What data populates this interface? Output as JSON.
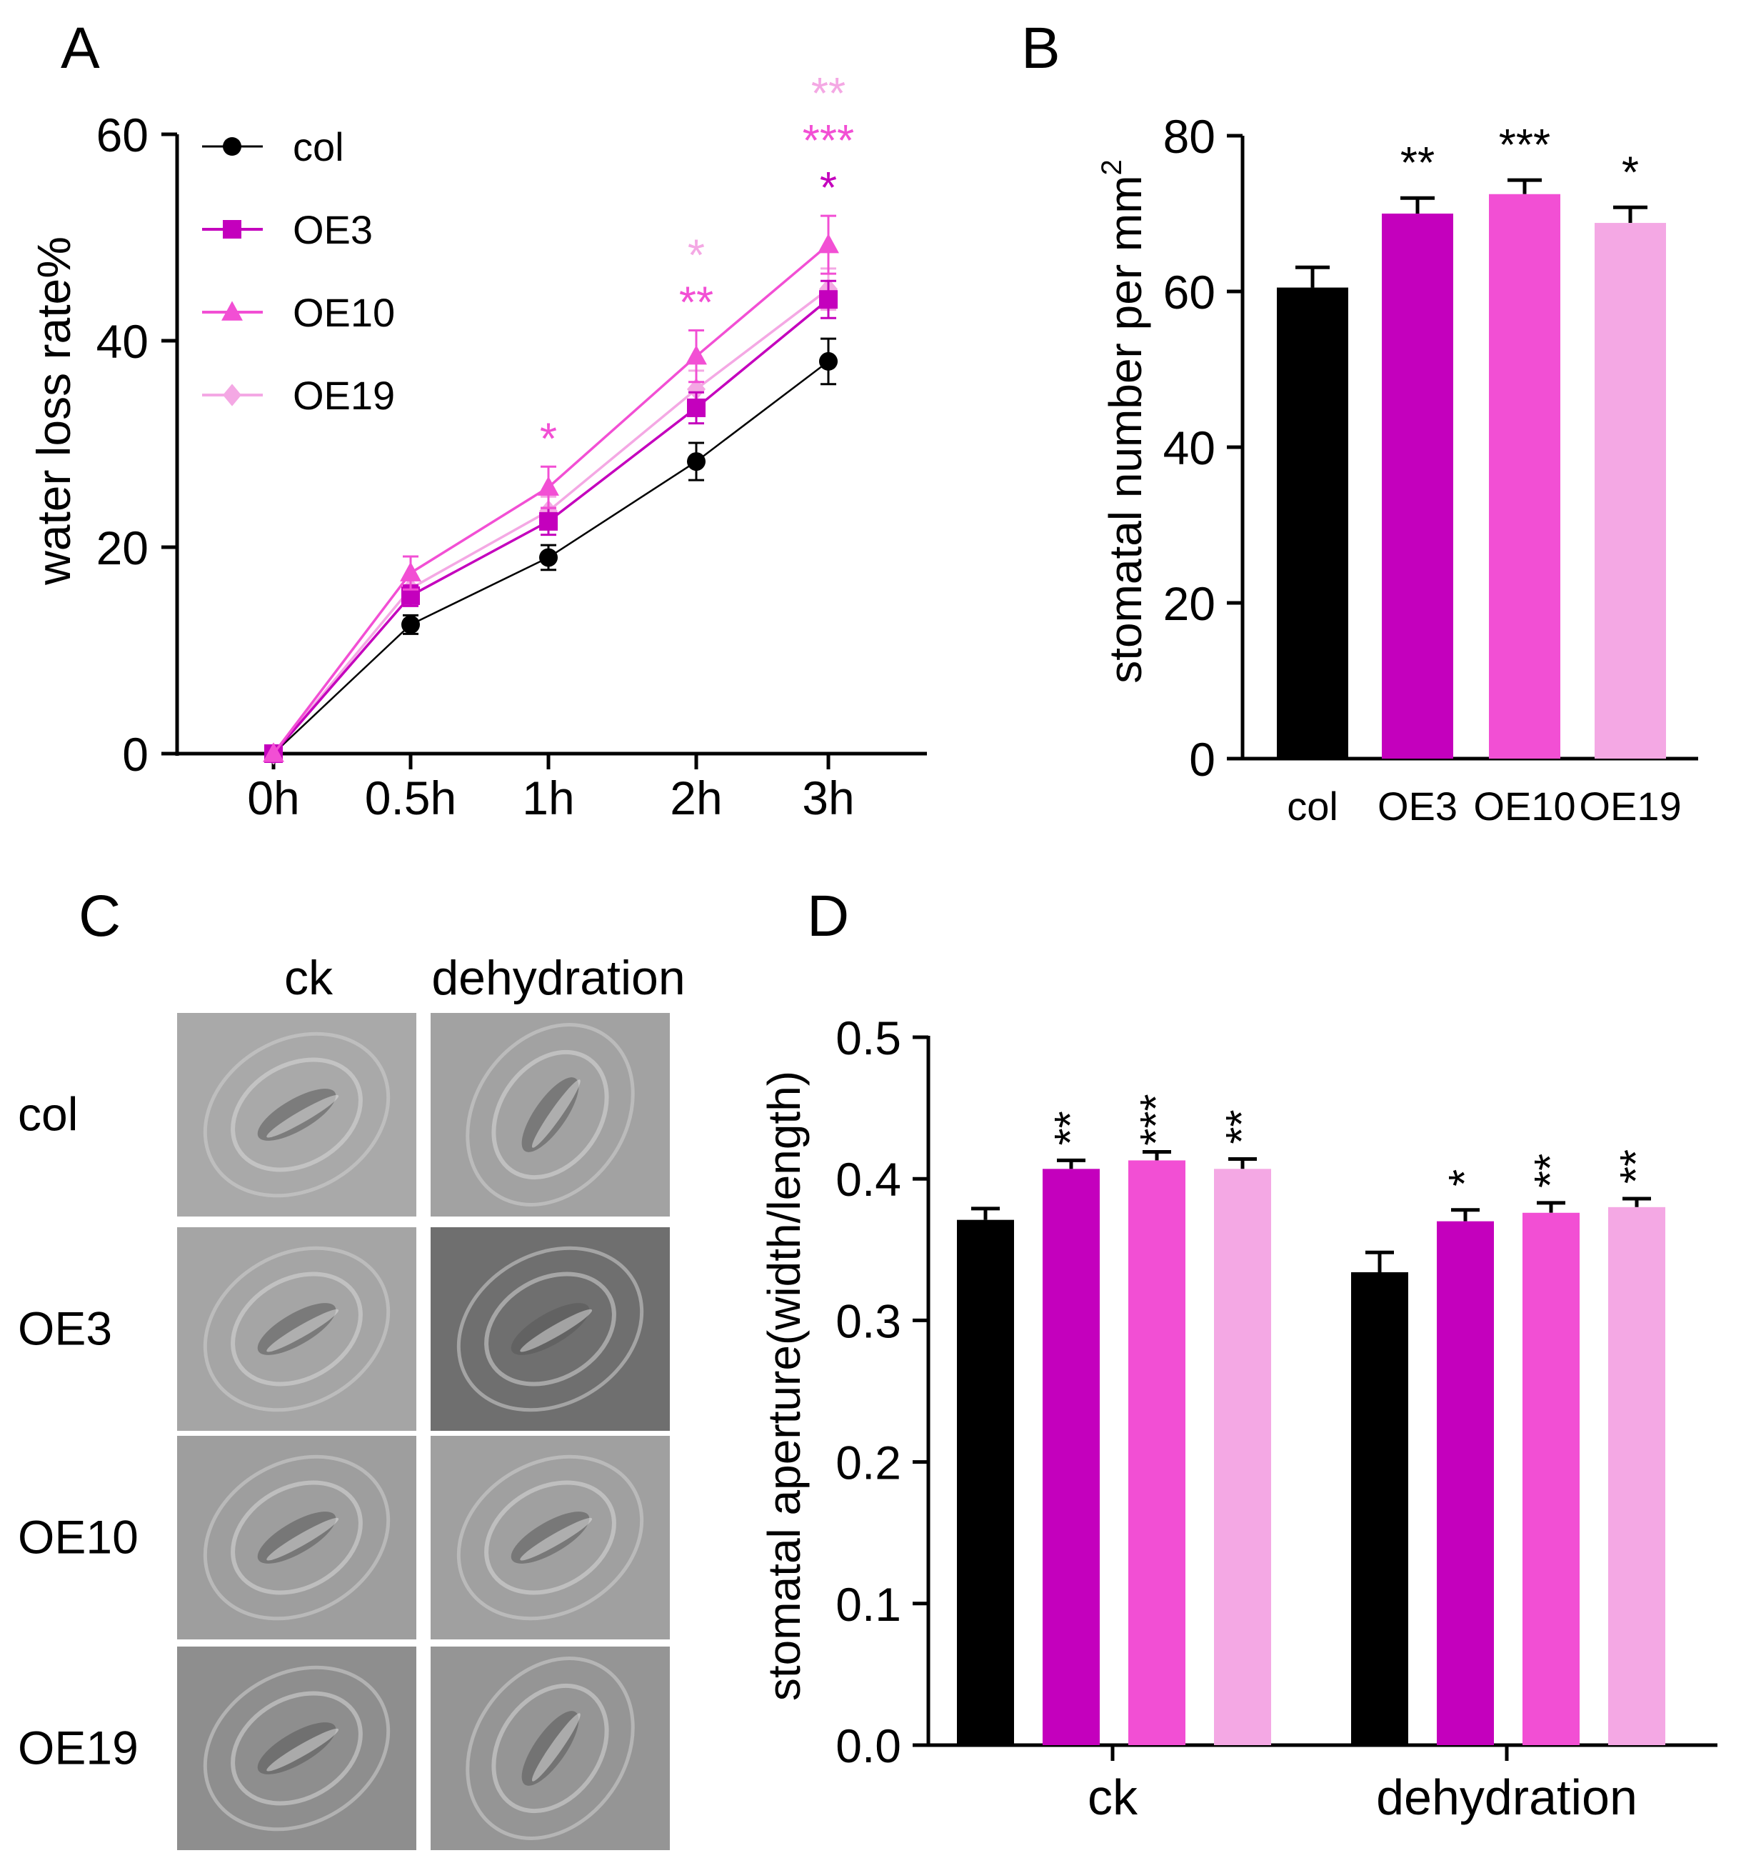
{
  "colors": {
    "col": "#000000",
    "OE3": "#c400bd",
    "OE10": "#f24fd4",
    "OE19": "#f4a8e4",
    "axis": "#000000",
    "stomata_bg": "#a4a4a4"
  },
  "chart_data": [
    {
      "panel": "A",
      "type": "line",
      "title": "",
      "xlabel": "",
      "ylabel": "water loss rate%",
      "categories": [
        "0h",
        "0.5h",
        "1h",
        "2h",
        "3h"
      ],
      "ylim": [
        0,
        60
      ],
      "yticks": [
        "0",
        "20",
        "40",
        "60"
      ],
      "legend_position": "top-left",
      "series": [
        {
          "name": "col",
          "key": "col",
          "marker": "circle",
          "values": [
            0,
            12.5,
            19.0,
            28.3,
            38.0
          ],
          "errors": [
            0.3,
            0.9,
            1.2,
            1.8,
            2.2
          ]
        },
        {
          "name": "OE3",
          "key": "OE3",
          "marker": "square",
          "values": [
            0,
            15.3,
            22.5,
            33.5,
            44.0
          ],
          "errors": [
            0.3,
            1.0,
            1.3,
            1.5,
            1.8
          ]
        },
        {
          "name": "OE10",
          "key": "OE10",
          "marker": "triangle",
          "values": [
            0,
            17.5,
            25.8,
            38.5,
            49.3
          ],
          "errors": [
            0.3,
            1.6,
            2.0,
            2.5,
            2.8
          ]
        },
        {
          "name": "OE19",
          "key": "OE19",
          "marker": "diamond",
          "values": [
            0,
            16.0,
            23.5,
            35.3,
            45.0
          ],
          "errors": [
            0.3,
            1.1,
            1.4,
            1.8,
            2.0
          ]
        }
      ],
      "annotations": [
        {
          "category": "1h",
          "level": 0,
          "text": "*",
          "key": "OE10"
        },
        {
          "category": "2h",
          "level": 0,
          "text": "**",
          "key": "OE10"
        },
        {
          "category": "2h",
          "level": 1,
          "text": "*",
          "key": "OE19"
        },
        {
          "category": "3h",
          "level": 0,
          "text": "*",
          "key": "OE3"
        },
        {
          "category": "3h",
          "level": 1,
          "text": "***",
          "key": "OE10"
        },
        {
          "category": "3h",
          "level": 2,
          "text": "**",
          "key": "OE19"
        }
      ]
    },
    {
      "panel": "B",
      "type": "bar",
      "title": "",
      "xlabel": "",
      "ylabel": "stomatal number per mm",
      "ylabel_superscript": "2",
      "categories": [
        "col",
        "OE3",
        "OE10",
        "OE19"
      ],
      "values": [
        60.5,
        70.0,
        72.5,
        68.8
      ],
      "errors": [
        2.6,
        2.0,
        1.8,
        2.0
      ],
      "significance": [
        "",
        "**",
        "***",
        "*"
      ],
      "ylim": [
        0,
        80
      ],
      "yticks": [
        "0",
        "20",
        "40",
        "60",
        "80"
      ]
    },
    {
      "panel": "D",
      "type": "bar",
      "title": "",
      "xlabel": "",
      "ylabel": "stomatal aperture(width/length)",
      "categories": [
        "ck",
        "dehydration"
      ],
      "series": [
        {
          "name": "col",
          "key": "col",
          "values": [
            0.371,
            0.334
          ],
          "errors": [
            0.008,
            0.014
          ],
          "significance": [
            "",
            ""
          ]
        },
        {
          "name": "OE3",
          "key": "OE3",
          "values": [
            0.407,
            0.37
          ],
          "errors": [
            0.006,
            0.008
          ],
          "significance": [
            "**",
            "*"
          ]
        },
        {
          "name": "OE10",
          "key": "OE10",
          "values": [
            0.413,
            0.376
          ],
          "errors": [
            0.006,
            0.007
          ],
          "significance": [
            "***",
            "**"
          ]
        },
        {
          "name": "OE19",
          "key": "OE19",
          "values": [
            0.407,
            0.38
          ],
          "errors": [
            0.007,
            0.006
          ],
          "significance": [
            "**",
            "**"
          ]
        }
      ],
      "ylim": [
        0,
        0.5
      ],
      "yticks": [
        "0.0",
        "0.1",
        "0.2",
        "0.3",
        "0.4",
        "0.5"
      ]
    }
  ],
  "panel_labels": {
    "A": "A",
    "B": "B",
    "C": "C",
    "D": "D"
  },
  "panel_c": {
    "column_headers": [
      "ck",
      "dehydration"
    ],
    "row_labels": [
      "col",
      "OE3",
      "OE10",
      "OE19"
    ]
  }
}
